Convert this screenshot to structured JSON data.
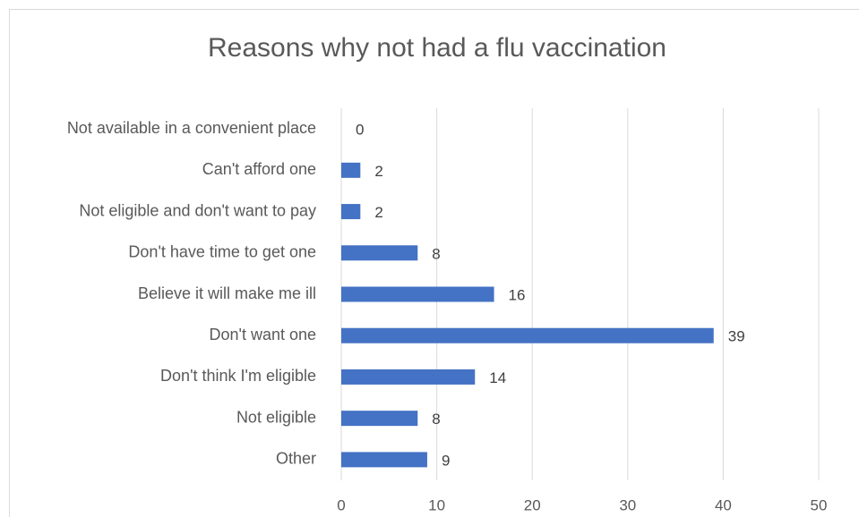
{
  "chart_data": {
    "type": "bar",
    "orientation": "horizontal",
    "title": "Reasons why not had a flu vaccination",
    "categories": [
      "Not available in a convenient place",
      "Can't afford one",
      "Not eligible and don't want to pay",
      "Don't have time to get one",
      "Believe it will make me ill",
      "Don't want one",
      "Don't think I'm eligible",
      "Not eligible",
      "Other"
    ],
    "values": [
      0,
      2,
      2,
      8,
      16,
      39,
      14,
      8,
      9
    ],
    "color": "#4472c4",
    "xlim": [
      0,
      50
    ],
    "xticks": [
      0,
      10,
      20,
      30,
      40,
      50
    ],
    "grid": true
  }
}
